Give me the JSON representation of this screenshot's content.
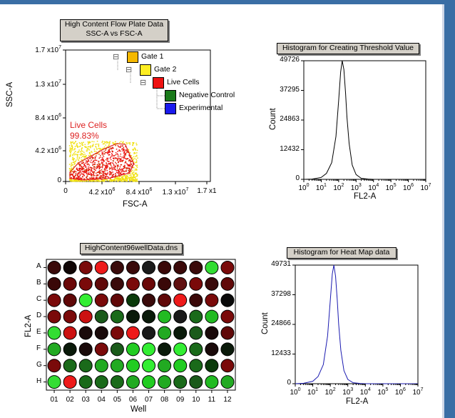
{
  "scatter": {
    "title_line1": "High Content Flow Plate Data",
    "title_line2": "SSC-A vs FSC-A",
    "xlabel": "FSC-A",
    "ylabel": "SSC-A",
    "y_ticks": [
      {
        "base": "1.7 x10",
        "exp": "7"
      },
      {
        "base": "1.3 x10",
        "exp": "7"
      },
      {
        "base": "8.4 x10",
        "exp": "6"
      },
      {
        "base": "4.2 x10",
        "exp": "6"
      },
      {
        "base": "0",
        "exp": ""
      }
    ],
    "x_ticks": [
      {
        "base": "0",
        "exp": ""
      },
      {
        "base": "4.2 x10",
        "exp": "6"
      },
      {
        "base": "8.4 x10",
        "exp": "6"
      },
      {
        "base": "1.3 x10",
        "exp": "7"
      },
      {
        "base": "1.7 x1",
        "exp": ""
      }
    ],
    "gate_label": "Live Cells",
    "gate_percent": "99.83%",
    "gate_color": "#dd2222",
    "tree": [
      {
        "label": "Gate 1",
        "color": "#f5b800",
        "toggle": "⊟"
      },
      {
        "label": "Gate 2",
        "color": "#ffee22",
        "toggle": "⊟"
      },
      {
        "label": "Live Cells",
        "color": "#ee1111",
        "toggle": "⊟"
      },
      {
        "label": "Negative Control",
        "color": "#1a7a1a",
        "toggle": ""
      },
      {
        "label": "Experimental",
        "color": "#1a1aee",
        "toggle": ""
      }
    ]
  },
  "hist1": {
    "title": "Histogram for Creating Threshold Value",
    "xlabel": "FL2-A",
    "ylabel": "Count",
    "y_ticks": [
      "49726",
      "37295",
      "24863",
      "12432",
      "0"
    ],
    "x_ticks": [
      "0",
      "1",
      "2",
      "3",
      "4",
      "5",
      "6",
      "7"
    ],
    "x_tick_base": "10",
    "line_color": "#000000"
  },
  "hist2": {
    "title": "Histogram for Heat Map data",
    "xlabel": "FL2-A",
    "ylabel": "Count",
    "y_ticks": [
      "49731",
      "37298",
      "24866",
      "12433",
      "0"
    ],
    "x_ticks": [
      "0",
      "1",
      "2",
      "3",
      "4",
      "5",
      "6",
      "7"
    ],
    "x_tick_base": "10",
    "line_color": "#1a1ab0"
  },
  "heatmap": {
    "title": "HighContent96wellData.dns",
    "xlabel": "Well",
    "ylabel": "FL2-A",
    "rows": [
      "A",
      "B",
      "C",
      "D",
      "E",
      "F",
      "G",
      "H"
    ],
    "cols": [
      "01",
      "02",
      "03",
      "04",
      "05",
      "06",
      "07",
      "08",
      "09",
      "10",
      "11",
      "12"
    ],
    "well_colors": [
      [
        "#3a0a0a",
        "#100606",
        "#7a0a0a",
        "#ee1a1a",
        "#3a0a0a",
        "#3a0a0a",
        "#1a1a1a",
        "#3a0808",
        "#3a0808",
        "#3a0a0a",
        "#33dd33",
        "#7a0a0a"
      ],
      [
        "#3a0808",
        "#6a0808",
        "#7a0a0a",
        "#600808",
        "#3a0a0a",
        "#7a0a0a",
        "#6a0808",
        "#3a0808",
        "#601010",
        "#7a0a0a",
        "#3a0a0a",
        "#600808"
      ],
      [
        "#7a0a0a",
        "#600808",
        "#33ee33",
        "#7a0a0a",
        "#600808",
        "#0a3a0a",
        "#3a0a0a",
        "#600808",
        "#ee1a1a",
        "#3a0808",
        "#7a0a0a",
        "#0a0a0a"
      ],
      [
        "#7a0a0a",
        "#7a0a0a",
        "#cc1111",
        "#1a5a1a",
        "#1a6a1a",
        "#0a1a0a",
        "#0a1a0a",
        "#22bb22",
        "#1a1a1a",
        "#1a6a1a",
        "#22bb22",
        "#7a0a0a"
      ],
      [
        "#33dd33",
        "#cc1111",
        "#1a0a0a",
        "#1a0a0a",
        "#7a0a0a",
        "#ee1a1a",
        "#1a1a1a",
        "#22aa22",
        "#0a1a0a",
        "#1a5a1a",
        "#1a0a0a",
        "#600808"
      ],
      [
        "#22aa22",
        "#0a1a0a",
        "#1a0a0a",
        "#7a0a0a",
        "#1a5a1a",
        "#22cc22",
        "#33ee33",
        "#0a1a0a",
        "#33ee33",
        "#1a6a1a",
        "#1a0a0a",
        "#0a1a0a"
      ],
      [
        "#7a0a0a",
        "#1a6a1a",
        "#1a6a1a",
        "#22aa22",
        "#22aa22",
        "#22cc22",
        "#33ee33",
        "#22aa22",
        "#22cc22",
        "#1a6a1a",
        "#0a3a0a",
        "#7a0a0a"
      ],
      [
        "#33dd33",
        "#ee1a1a",
        "#1a6a1a",
        "#1a6a1a",
        "#1a6a1a",
        "#22aa22",
        "#22cc22",
        "#22aa22",
        "#1a6a1a",
        "#1a5a1a",
        "#22bb22",
        "#22aa22"
      ]
    ]
  },
  "chart_data": [
    {
      "type": "scatter",
      "title": "High Content Flow Plate Data SSC-A vs FSC-A",
      "xlabel": "FSC-A",
      "ylabel": "SSC-A",
      "xlim": [
        0,
        17000000
      ],
      "ylim": [
        0,
        17000000
      ],
      "gate_polygon": [
        [
          500000,
          1200000
        ],
        [
          1500000,
          2400000
        ],
        [
          3000000,
          3300000
        ],
        [
          4500000,
          4200000
        ],
        [
          6000000,
          4900000
        ],
        [
          7000000,
          4800000
        ],
        [
          8000000,
          2300000
        ],
        [
          7500000,
          1100000
        ],
        [
          5000000,
          400000
        ],
        [
          2000000,
          200000
        ],
        [
          500000,
          400000
        ]
      ],
      "density_center": [
        3500000,
        1200000
      ],
      "series": [
        {
          "name": "Live Cells",
          "color": "#ee1111"
        }
      ]
    },
    {
      "type": "line",
      "title": "Histogram for Creating Threshold Value",
      "xlabel": "FL2-A",
      "ylabel": "Count",
      "x_scale": "log",
      "xlim": [
        1,
        10000000
      ],
      "ylim": [
        0,
        49726
      ],
      "x": [
        1,
        3,
        10,
        20,
        40,
        70,
        100,
        130,
        160,
        200,
        250,
        300,
        400,
        600,
        1000,
        2000,
        5000,
        10000,
        100000,
        10000000
      ],
      "y": [
        0,
        100,
        800,
        2500,
        7000,
        18000,
        33000,
        45000,
        49726,
        46000,
        36000,
        26000,
        15000,
        6000,
        2000,
        400,
        100,
        0,
        0,
        0
      ]
    },
    {
      "type": "heatmap",
      "title": "HighContent96wellData.dns",
      "xlabel": "Well",
      "ylabel": "FL2-A",
      "rows": [
        "A",
        "B",
        "C",
        "D",
        "E",
        "F",
        "G",
        "H"
      ],
      "columns": [
        "01",
        "02",
        "03",
        "04",
        "05",
        "06",
        "07",
        "08",
        "09",
        "10",
        "11",
        "12"
      ]
    },
    {
      "type": "line",
      "title": "Histogram for Heat Map data",
      "xlabel": "FL2-A",
      "ylabel": "Count",
      "x_scale": "log",
      "xlim": [
        1,
        10000000
      ],
      "ylim": [
        0,
        49731
      ],
      "x": [
        1,
        3,
        10,
        20,
        40,
        70,
        100,
        130,
        160,
        200,
        250,
        300,
        400,
        600,
        1000,
        2000,
        5000,
        10000,
        100000,
        10000000
      ],
      "y": [
        0,
        200,
        1000,
        3000,
        8000,
        20000,
        35000,
        46000,
        49731,
        45000,
        35000,
        25000,
        14000,
        5500,
        1800,
        400,
        100,
        0,
        0,
        0
      ]
    }
  ]
}
